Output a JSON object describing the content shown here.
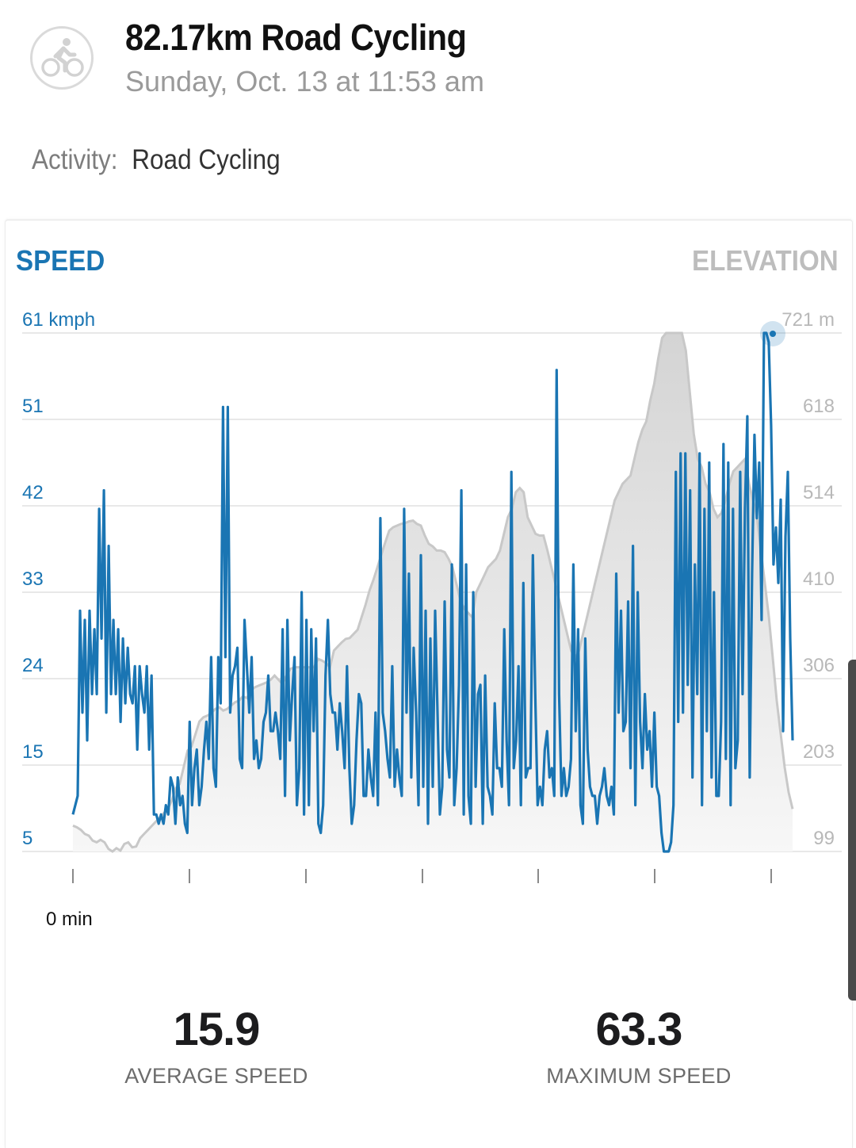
{
  "header": {
    "icon": "cyclist-icon",
    "title": "82.17km Road Cycling",
    "subtitle": "Sunday, Oct. 13 at 11:53 am"
  },
  "activity": {
    "label": "Activity:",
    "value": "Road Cycling"
  },
  "tabs": {
    "speed": "SPEED",
    "elevation": "ELEVATION"
  },
  "chart_data": {
    "type": "line",
    "speed_axis": {
      "ticks": [
        "61 kmph",
        "51",
        "42",
        "33",
        "24",
        "15",
        "5"
      ],
      "range": [
        5,
        61
      ]
    },
    "elevation_axis": {
      "ticks": [
        "721 m",
        "618",
        "514",
        "410",
        "306",
        "203",
        "99"
      ],
      "range": [
        99,
        721
      ]
    },
    "x_labels": [
      "0 min"
    ],
    "colors": {
      "speed": "#1a75b3",
      "elevation": "#c4c4c4"
    },
    "speed": [
      9,
      10,
      11,
      31,
      20,
      30,
      17,
      31,
      22,
      29,
      22,
      42,
      28,
      44,
      20,
      38,
      22,
      30,
      22,
      29,
      19,
      28,
      21,
      27,
      22,
      21,
      25,
      16,
      25,
      22,
      20,
      25,
      16,
      24,
      9,
      9,
      8,
      9,
      8,
      10,
      9,
      13,
      12,
      8,
      13,
      10,
      11,
      8,
      7,
      19,
      10,
      14,
      16,
      10,
      12,
      16,
      19,
      15,
      26,
      14,
      12,
      26,
      21,
      53,
      26,
      53,
      20,
      24,
      25,
      27,
      15,
      14,
      30,
      25,
      20,
      26,
      15,
      17,
      14,
      15,
      19,
      20,
      24,
      18,
      18,
      20,
      18,
      15,
      29,
      11,
      30,
      17,
      22,
      26,
      10,
      14,
      33,
      9,
      30,
      10,
      29,
      18,
      28,
      8,
      7,
      10,
      24,
      30,
      22,
      20,
      20,
      16,
      21,
      18,
      14,
      25,
      14,
      8,
      10,
      17,
      22,
      21,
      11,
      11,
      16,
      13,
      11,
      20,
      10,
      41,
      20,
      18,
      15,
      13,
      25,
      12,
      16,
      13,
      11,
      42,
      20,
      35,
      13,
      27,
      20,
      10,
      37,
      12,
      31,
      8,
      28,
      12,
      31,
      20,
      9,
      12,
      32,
      16,
      13,
      36,
      10,
      14,
      23,
      44,
      9,
      36,
      11,
      8,
      33,
      12,
      22,
      23,
      8,
      24,
      12,
      11,
      9,
      21,
      14,
      14,
      12,
      29,
      17,
      10,
      46,
      14,
      17,
      25,
      10,
      34,
      13,
      14,
      14,
      37,
      22,
      10,
      12,
      10,
      16,
      18,
      13,
      14,
      11,
      57,
      22,
      11,
      14,
      11,
      12,
      15,
      36,
      18,
      29,
      10,
      8,
      28,
      16,
      12,
      11,
      11,
      8,
      11,
      12,
      14,
      11,
      10,
      12,
      9,
      35,
      20,
      31,
      18,
      19,
      32,
      14,
      38,
      10,
      33,
      19,
      14,
      22,
      16,
      18,
      12,
      20,
      12,
      11,
      7,
      5,
      5,
      5,
      6,
      10,
      46,
      19,
      48,
      20,
      48,
      23,
      44,
      13,
      36,
      22,
      48,
      10,
      42,
      18,
      47,
      13,
      33,
      11,
      11,
      19,
      49,
      15,
      47,
      10,
      42,
      14,
      17,
      46,
      22,
      42,
      52,
      13,
      35,
      50,
      41,
      47,
      30,
      62,
      61,
      60,
      51,
      36,
      40,
      34,
      43,
      18,
      39,
      46,
      28,
      17
    ],
    "elevation": [
      130,
      128,
      125,
      120,
      118,
      112,
      110,
      113,
      110,
      102,
      99,
      103,
      100,
      108,
      110,
      104,
      105,
      115,
      120,
      125,
      130,
      135,
      140,
      145,
      150,
      160,
      175,
      180,
      200,
      220,
      225,
      240,
      255,
      260,
      262,
      265,
      270,
      272,
      268,
      270,
      274,
      278,
      280,
      285,
      283,
      292,
      296,
      298,
      300,
      302,
      305,
      310,
      305,
      300,
      310,
      318,
      320,
      320,
      320,
      320,
      320,
      320,
      330,
      328,
      325,
      320,
      340,
      345,
      350,
      354,
      355,
      360,
      365,
      380,
      395,
      412,
      425,
      440,
      455,
      470,
      484,
      488,
      490,
      492,
      493,
      495,
      496,
      492,
      490,
      478,
      468,
      465,
      460,
      460,
      458,
      450,
      440,
      420,
      400,
      390,
      385,
      380,
      410,
      420,
      430,
      440,
      445,
      450,
      460,
      480,
      500,
      510,
      530,
      535,
      530,
      500,
      490,
      480,
      478,
      478,
      460,
      440,
      420,
      400,
      380,
      360,
      340,
      330,
      340,
      360,
      380,
      400,
      420,
      440,
      460,
      480,
      500,
      520,
      530,
      540,
      545,
      550,
      570,
      590,
      605,
      615,
      640,
      660,
      690,
      715,
      721,
      721,
      721,
      721,
      721,
      700,
      650,
      600,
      570,
      560,
      540,
      530,
      510,
      500,
      505,
      520,
      540,
      555,
      560,
      565,
      570,
      540,
      520,
      500,
      460,
      420,
      380,
      330,
      280,
      240,
      200,
      170,
      150
    ],
    "average_speed": 15.9,
    "maximum_speed": 63.3
  },
  "stats": {
    "average": {
      "value": "15.9",
      "label": "AVERAGE SPEED"
    },
    "maximum": {
      "value": "63.3",
      "label": "MAXIMUM SPEED"
    }
  }
}
